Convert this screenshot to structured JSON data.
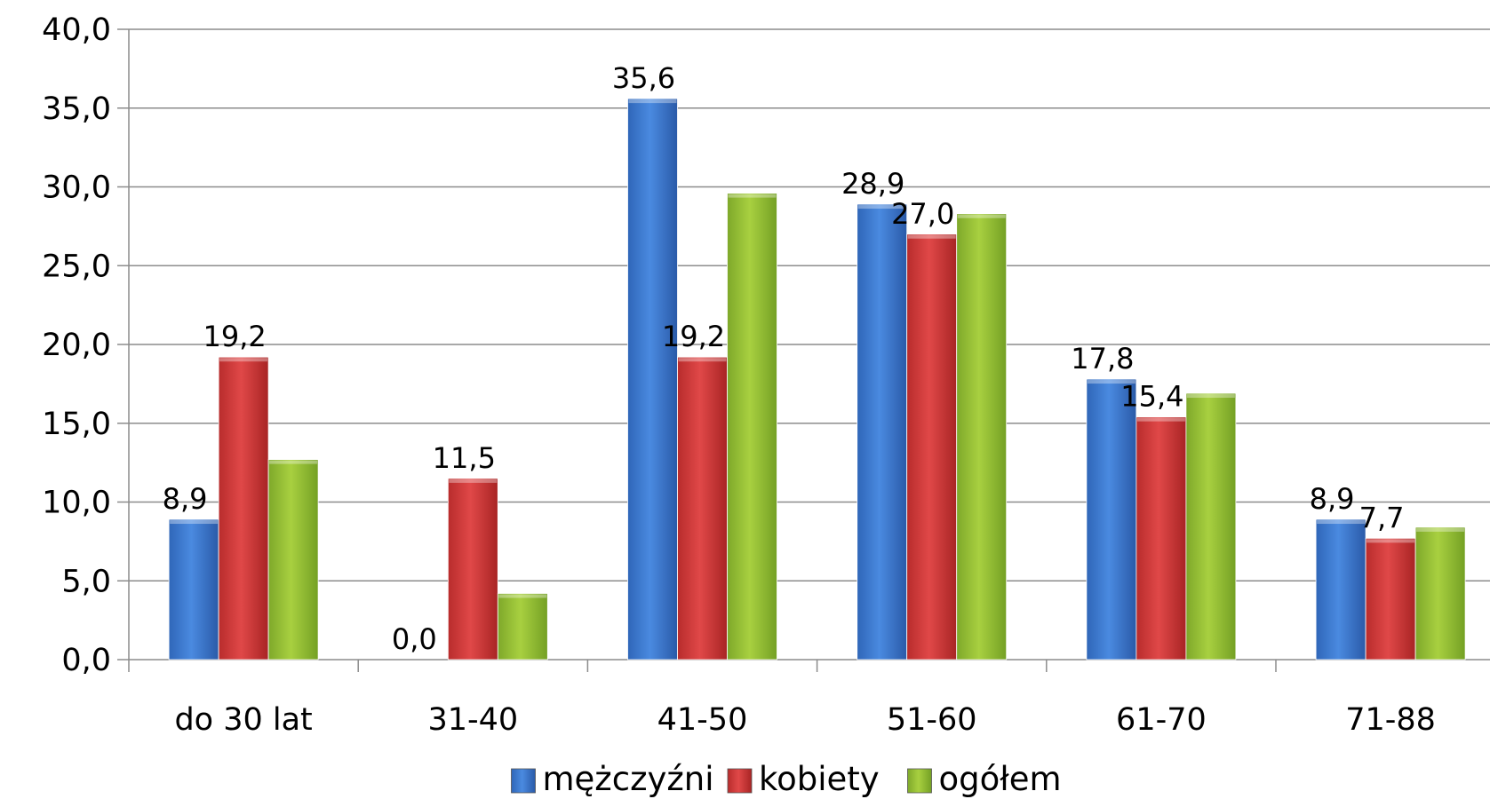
{
  "chart_data": {
    "type": "bar",
    "title": "",
    "xlabel": "",
    "ylabel": "",
    "categories": [
      "do 30 lat",
      "31-40",
      "41-50",
      "51-60",
      "61-70",
      "71-88"
    ],
    "series": [
      {
        "name": "mężczyźni",
        "color": "#3f7fd6",
        "values": [
          8.9,
          0.0,
          35.6,
          28.9,
          17.8,
          8.9
        ],
        "labels": [
          "8,9",
          "0,0",
          "35,6",
          "28,9",
          "17,8",
          "8,9"
        ]
      },
      {
        "name": "kobiety",
        "color": "#d84040",
        "values": [
          19.2,
          11.5,
          19.2,
          27.0,
          15.4,
          7.7
        ],
        "labels": [
          "19,2",
          "11,5",
          "19,2",
          "27,0",
          "15,4",
          "7,7"
        ]
      },
      {
        "name": "ogółem",
        "color": "#9cc63a",
        "values": [
          12.7,
          4.2,
          29.6,
          28.3,
          16.9,
          8.4
        ],
        "labels": [
          "",
          "",
          "",
          "",
          "",
          ""
        ]
      }
    ],
    "ylim": [
      0,
      40
    ],
    "yticks": [
      0,
      5,
      10,
      15,
      20,
      25,
      30,
      35,
      40
    ],
    "ytick_labels": [
      "0,0",
      "5,0",
      "10,0",
      "15,0",
      "20,0",
      "25,0",
      "30,0",
      "35,0",
      "40,0"
    ],
    "grid": true,
    "legend_position": "bottom"
  }
}
